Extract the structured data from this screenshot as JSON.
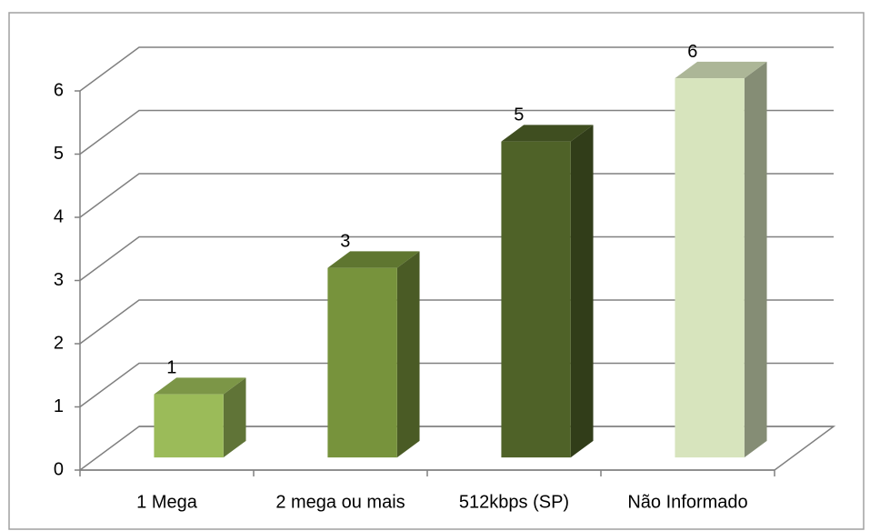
{
  "chart_data": {
    "type": "bar3d",
    "categories": [
      "1 Mega",
      "2 mega ou mais",
      "512kbps (SP)",
      "Não Informado"
    ],
    "values": [
      1,
      3,
      5,
      6
    ],
    "colors": [
      "#9bbb59",
      "#77933c",
      "#4f6228",
      "#d7e4bd"
    ],
    "ylim": [
      0,
      6
    ],
    "yticks": [
      0,
      1,
      2,
      3,
      4,
      5,
      6
    ],
    "grid": true
  }
}
